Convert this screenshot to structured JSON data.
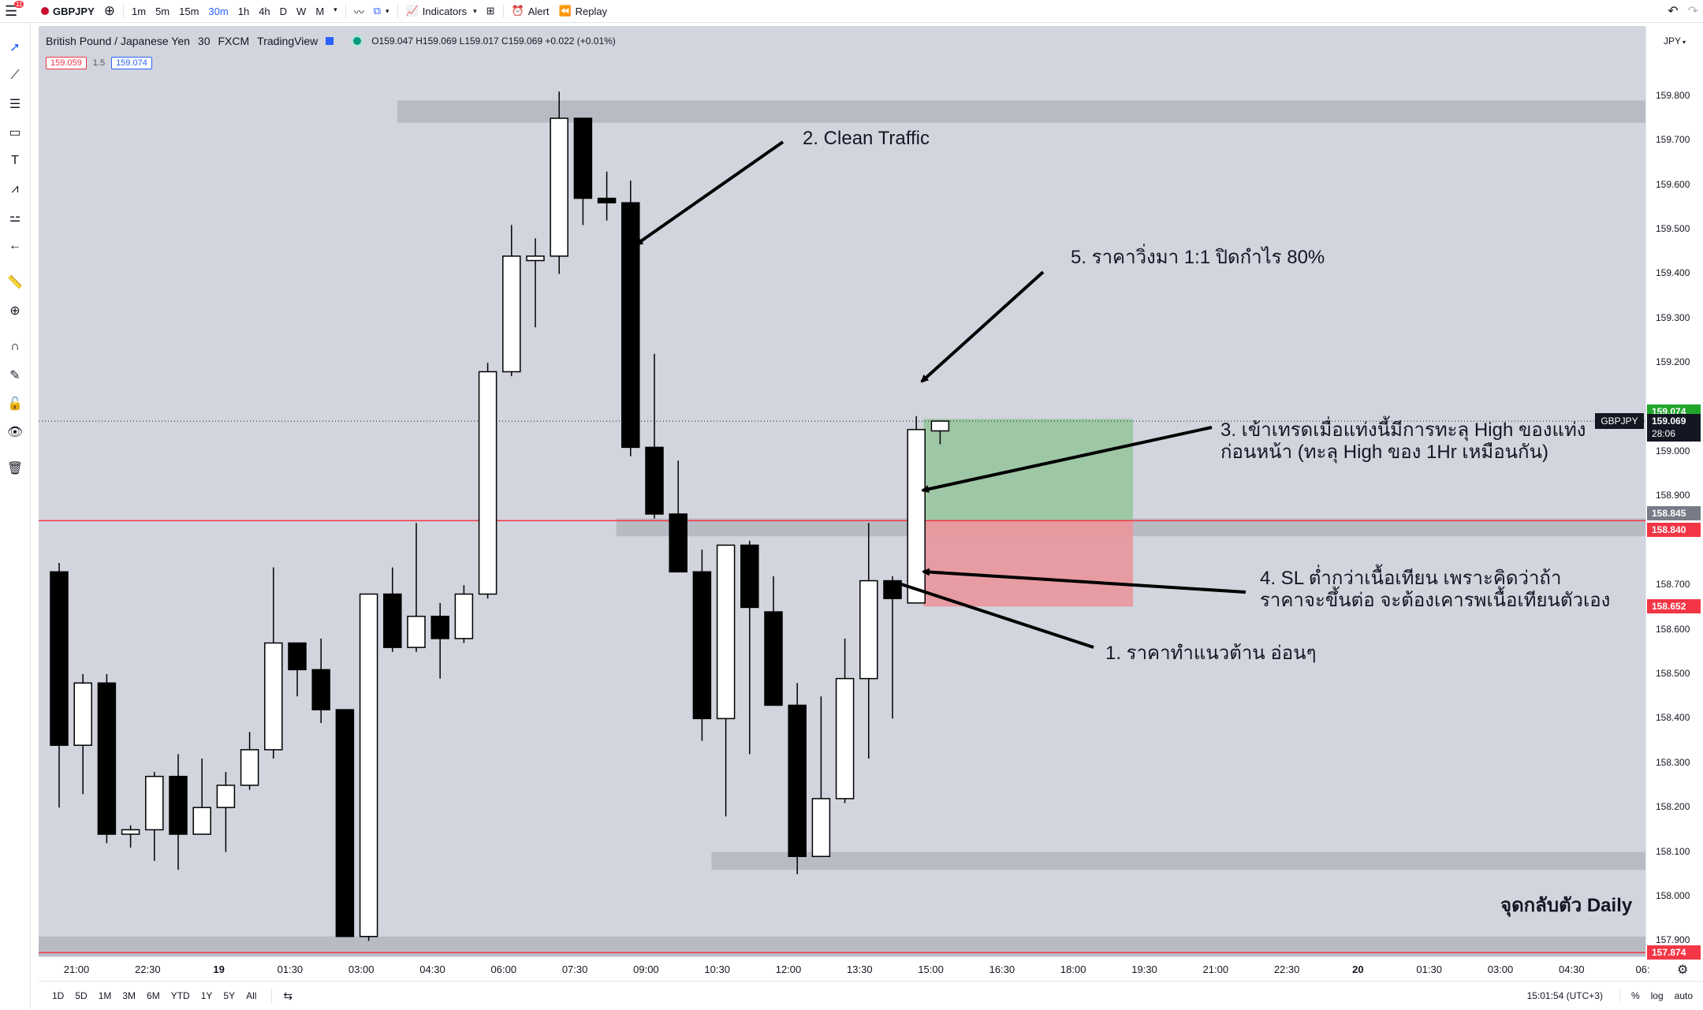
{
  "app": {
    "title": "TradingView",
    "notification_count": "11"
  },
  "topbar": {
    "symbol": "GBPJPY",
    "timeframes": [
      "1m",
      "5m",
      "15m",
      "30m",
      "1h",
      "4h",
      "D",
      "W",
      "M"
    ],
    "active_timeframe": "30m",
    "indicators_label": "Indicators",
    "alert_label": "Alert",
    "replay_label": "Replay"
  },
  "legend": {
    "name": "British Pound / Japanese Yen",
    "interval": "30",
    "exchange": "FXCM",
    "source": "TradingView",
    "ohlc": "O159.047 H159.069 L159.017 C159.069 +0.022 (+0.01%)",
    "sell_price": "159.059",
    "spread": "1.5",
    "buy_price": "159.074"
  },
  "currency_label": "JPY",
  "colors": {
    "bg": "#d2d5de",
    "up_fill": "#ffffff",
    "down_fill": "#000000",
    "red_line": "#f23645",
    "green_badge": "#089981",
    "zone": "#b8bbc4"
  },
  "price_axis": {
    "ticks": [
      "159.800",
      "159.700",
      "159.600",
      "159.500",
      "159.400",
      "159.300",
      "159.200",
      "159.000",
      "158.900",
      "158.700",
      "158.600",
      "158.500",
      "158.400",
      "158.300",
      "158.200",
      "158.100",
      "158.000",
      "157.900"
    ],
    "badges": [
      {
        "label": "159.074",
        "price": 159.074,
        "color": "#22a52b",
        "text_color": "#ffffff"
      },
      {
        "label": "159.069",
        "price": 159.069,
        "color": "#131722",
        "text_color": "#ffffff",
        "sub": "28:06"
      },
      {
        "label": "158.845",
        "price": 158.845,
        "color": "#787b86",
        "text_color": "#ffffff"
      },
      {
        "label": "158.840",
        "price": 158.84,
        "color": "#f23645",
        "text_color": "#ffffff"
      },
      {
        "label": "158.652",
        "price": 158.652,
        "color": "#f23645",
        "text_color": "#ffffff"
      },
      {
        "label": "157.874",
        "price": 157.874,
        "color": "#f23645",
        "text_color": "#ffffff"
      }
    ],
    "symbol_tag": "GBPJPY"
  },
  "time_axis": {
    "labels": [
      "21:00",
      "22:30",
      "19",
      "01:30",
      "03:00",
      "04:30",
      "06:00",
      "07:30",
      "09:00",
      "10:30",
      "12:00",
      "13:30",
      "15:00",
      "16:30",
      "18:00",
      "19:30",
      "21:00",
      "22:30",
      "20",
      "01:30",
      "03:00",
      "04:30",
      "06:"
    ]
  },
  "chart_data": {
    "type": "candlestick",
    "symbol": "GBPJPY",
    "interval": "30",
    "ylim": [
      157.83,
      159.86
    ],
    "candles": [
      {
        "o": 158.73,
        "h": 158.75,
        "l": 158.2,
        "c": 158.34
      },
      {
        "o": 158.34,
        "h": 158.5,
        "l": 158.23,
        "c": 158.48
      },
      {
        "o": 158.48,
        "h": 158.5,
        "l": 158.12,
        "c": 158.14
      },
      {
        "o": 158.14,
        "h": 158.16,
        "l": 158.11,
        "c": 158.15
      },
      {
        "o": 158.15,
        "h": 158.28,
        "l": 158.08,
        "c": 158.27
      },
      {
        "o": 158.27,
        "h": 158.32,
        "l": 158.06,
        "c": 158.14
      },
      {
        "o": 158.14,
        "h": 158.31,
        "l": 158.14,
        "c": 158.2
      },
      {
        "o": 158.2,
        "h": 158.28,
        "l": 158.1,
        "c": 158.25
      },
      {
        "o": 158.25,
        "h": 158.37,
        "l": 158.24,
        "c": 158.33
      },
      {
        "o": 158.33,
        "h": 158.74,
        "l": 158.31,
        "c": 158.57
      },
      {
        "o": 158.57,
        "h": 158.57,
        "l": 158.45,
        "c": 158.51
      },
      {
        "o": 158.51,
        "h": 158.58,
        "l": 158.39,
        "c": 158.42
      },
      {
        "o": 158.42,
        "h": 158.42,
        "l": 157.91,
        "c": 157.91
      },
      {
        "o": 157.91,
        "h": 158.68,
        "l": 157.9,
        "c": 158.68
      },
      {
        "o": 158.68,
        "h": 158.74,
        "l": 158.55,
        "c": 158.56
      },
      {
        "o": 158.56,
        "h": 158.84,
        "l": 158.55,
        "c": 158.63
      },
      {
        "o": 158.63,
        "h": 158.66,
        "l": 158.49,
        "c": 158.58
      },
      {
        "o": 158.58,
        "h": 158.7,
        "l": 158.57,
        "c": 158.68
      },
      {
        "o": 158.68,
        "h": 159.2,
        "l": 158.67,
        "c": 159.18
      },
      {
        "o": 159.18,
        "h": 159.51,
        "l": 159.17,
        "c": 159.44
      },
      {
        "o": 159.43,
        "h": 159.48,
        "l": 159.28,
        "c": 159.44
      },
      {
        "o": 159.44,
        "h": 159.81,
        "l": 159.4,
        "c": 159.75
      },
      {
        "o": 159.75,
        "h": 159.75,
        "l": 159.51,
        "c": 159.57
      },
      {
        "o": 159.57,
        "h": 159.63,
        "l": 159.52,
        "c": 159.56
      },
      {
        "o": 159.56,
        "h": 159.61,
        "l": 158.99,
        "c": 159.01
      },
      {
        "o": 159.01,
        "h": 159.22,
        "l": 158.85,
        "c": 158.86
      },
      {
        "o": 158.86,
        "h": 158.98,
        "l": 158.73,
        "c": 158.73
      },
      {
        "o": 158.73,
        "h": 158.78,
        "l": 158.35,
        "c": 158.4
      },
      {
        "o": 158.4,
        "h": 158.79,
        "l": 158.18,
        "c": 158.79
      },
      {
        "o": 158.79,
        "h": 158.8,
        "l": 158.32,
        "c": 158.65
      },
      {
        "o": 158.64,
        "h": 158.72,
        "l": 158.45,
        "c": 158.43
      },
      {
        "o": 158.43,
        "h": 158.48,
        "l": 158.05,
        "c": 158.09
      },
      {
        "o": 158.09,
        "h": 158.45,
        "l": 158.09,
        "c": 158.22
      },
      {
        "o": 158.22,
        "h": 158.58,
        "l": 158.21,
        "c": 158.49
      },
      {
        "o": 158.49,
        "h": 158.84,
        "l": 158.31,
        "c": 158.71
      },
      {
        "o": 158.71,
        "h": 158.72,
        "l": 158.4,
        "c": 158.67
      },
      {
        "o": 158.66,
        "h": 159.08,
        "l": 158.66,
        "c": 159.05
      },
      {
        "o": 159.047,
        "h": 159.069,
        "l": 159.017,
        "c": 159.069
      }
    ],
    "zones": [
      {
        "price_top": 159.79,
        "price_bottom": 159.74,
        "from_candle": 14.2
      },
      {
        "price_top": 158.85,
        "price_bottom": 158.81,
        "from_candle": 23.4
      },
      {
        "price_top": 158.1,
        "price_bottom": 158.06,
        "from_candle": 27.4
      },
      {
        "price_top": 157.91,
        "price_bottom": 157.85,
        "from_candle": -1
      }
    ],
    "hlines": [
      {
        "price": 158.845,
        "color": "#f23645"
      },
      {
        "price": 157.874,
        "color": "#f23645"
      }
    ],
    "current_price": 159.069,
    "position": {
      "entry": 158.845,
      "target": 159.074,
      "stop": 158.652,
      "from_candle": 36.3,
      "to_candle": 45.1
    }
  },
  "annotations": {
    "a2": "2. Clean Traffic",
    "a5": "5. ราคาวิ่งมา 1:1  ปิดกำไร 80%",
    "a3_line1": "3. เข้าเทรดเมื่อแท่งนี้มีการทะลุ High ของแท่ง",
    "a3_line2": "ก่อนหน้า (ทะลุ High ของ 1Hr เหมือนกัน)",
    "a4_line1": "4. SL ต่ำกว่าเนื้อเทียน เพราะคิดว่าถ้า",
    "a4_line2": "ราคาจะขึ้นต่อ จะต้องเคารพเนื้อเทียนตัวเอง",
    "a1": "1. ราคาทำแนวต้าน อ่อนๆ",
    "daily": "จุดกลับตัว Daily"
  },
  "bottombar": {
    "ranges": [
      "1D",
      "5D",
      "1M",
      "3M",
      "6M",
      "YTD",
      "1Y",
      "5Y",
      "All"
    ],
    "clock": "15:01:54 (UTC+3)",
    "percent_label": "%",
    "log_label": "log",
    "auto_label": "auto"
  }
}
